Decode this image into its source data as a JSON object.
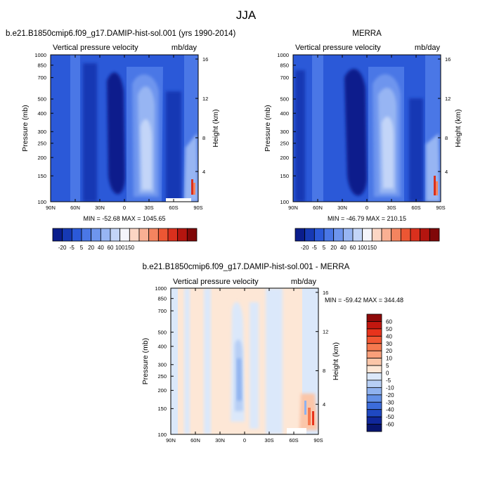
{
  "page_title": "JJA",
  "chart_data": [
    {
      "type": "heatmap",
      "title": "b.e21.B1850cmip6.f09_g17.DAMIP-hist-sol.001 (yrs 1990-2014)",
      "left_label": "Vertical pressure velocity",
      "right_label": "mb/day",
      "ylabel": "Pressure (mb)",
      "ylabel_right": "Height (km)",
      "x_ticks": [
        "90N",
        "60N",
        "30N",
        "0",
        "30S",
        "60S",
        "90S"
      ],
      "y_ticks": [
        "100",
        "150",
        "200",
        "250",
        "300",
        "400",
        "500",
        "700",
        "850",
        "1000"
      ],
      "y_ticks_right": [
        "16",
        "12",
        "8",
        "4"
      ],
      "ylim": [
        1000,
        100
      ],
      "stats": "MIN = -52.68  MAX = 1045.65",
      "colorbar_labels": [
        "-20",
        "-5",
        "5",
        "20",
        "40",
        "60",
        "100",
        "150"
      ],
      "colorbar_colors": [
        "#0a1d8c",
        "#1639b4",
        "#2b59d8",
        "#4a77e6",
        "#6e95ee",
        "#97b5f3",
        "#c3d5f8",
        "#f5f5fb",
        "#fcd6c4",
        "#f9b093",
        "#f4845f",
        "#ec5633",
        "#d9301d",
        "#b4150f",
        "#800808"
      ]
    },
    {
      "type": "heatmap",
      "title": "MERRA",
      "left_label": "Vertical pressure velocity",
      "right_label": "mb/day",
      "ylabel": "Pressure (mb)",
      "ylabel_right": "Height (km)",
      "x_ticks": [
        "90N",
        "60N",
        "30N",
        "0",
        "30S",
        "60S",
        "90S"
      ],
      "y_ticks": [
        "100",
        "150",
        "200",
        "250",
        "300",
        "400",
        "500",
        "700",
        "850",
        "1000"
      ],
      "y_ticks_right": [
        "16",
        "12",
        "8",
        "4"
      ],
      "ylim": [
        1000,
        100
      ],
      "stats": "MIN = -46.79  MAX = 210.15",
      "colorbar_labels": [
        "-20",
        "-5",
        "5",
        "20",
        "40",
        "60",
        "100",
        "150"
      ],
      "colorbar_colors": [
        "#0a1d8c",
        "#1639b4",
        "#2b59d8",
        "#4a77e6",
        "#6e95ee",
        "#97b5f3",
        "#c3d5f8",
        "#f5f5fb",
        "#fcd6c4",
        "#f9b093",
        "#f4845f",
        "#ec5633",
        "#d9301d",
        "#b4150f",
        "#800808"
      ]
    },
    {
      "type": "heatmap",
      "title": "b.e21.B1850cmip6.f09_g17.DAMIP-hist-sol.001 - MERRA",
      "left_label": "Vertical pressure velocity",
      "right_label": "mb/day",
      "ylabel": "Pressure (mb)",
      "ylabel_right": "Height (km)",
      "x_ticks": [
        "90N",
        "60N",
        "30N",
        "0",
        "30S",
        "60S",
        "90S"
      ],
      "y_ticks": [
        "100",
        "150",
        "200",
        "250",
        "300",
        "400",
        "500",
        "700",
        "850",
        "1000"
      ],
      "y_ticks_right": [
        "16",
        "12",
        "8",
        "4"
      ],
      "ylim": [
        1000,
        100
      ],
      "stats": "MIN = -59.42  MAX = 344.48",
      "colorbar_labels": [
        "60",
        "50",
        "40",
        "30",
        "20",
        "10",
        "5",
        "0",
        "-5",
        "-10",
        "-20",
        "-30",
        "-40",
        "-50",
        "-60"
      ],
      "colorbar_colors": [
        "#8e0a0a",
        "#c2170f",
        "#e8331c",
        "#f25733",
        "#f6794f",
        "#f99f7a",
        "#fbc6a9",
        "#fde7d6",
        "#dbe8fa",
        "#b7cff5",
        "#8fb2ef",
        "#6390e7",
        "#3c6cdb",
        "#1f48c2",
        "#10279b",
        "#081570"
      ]
    }
  ]
}
